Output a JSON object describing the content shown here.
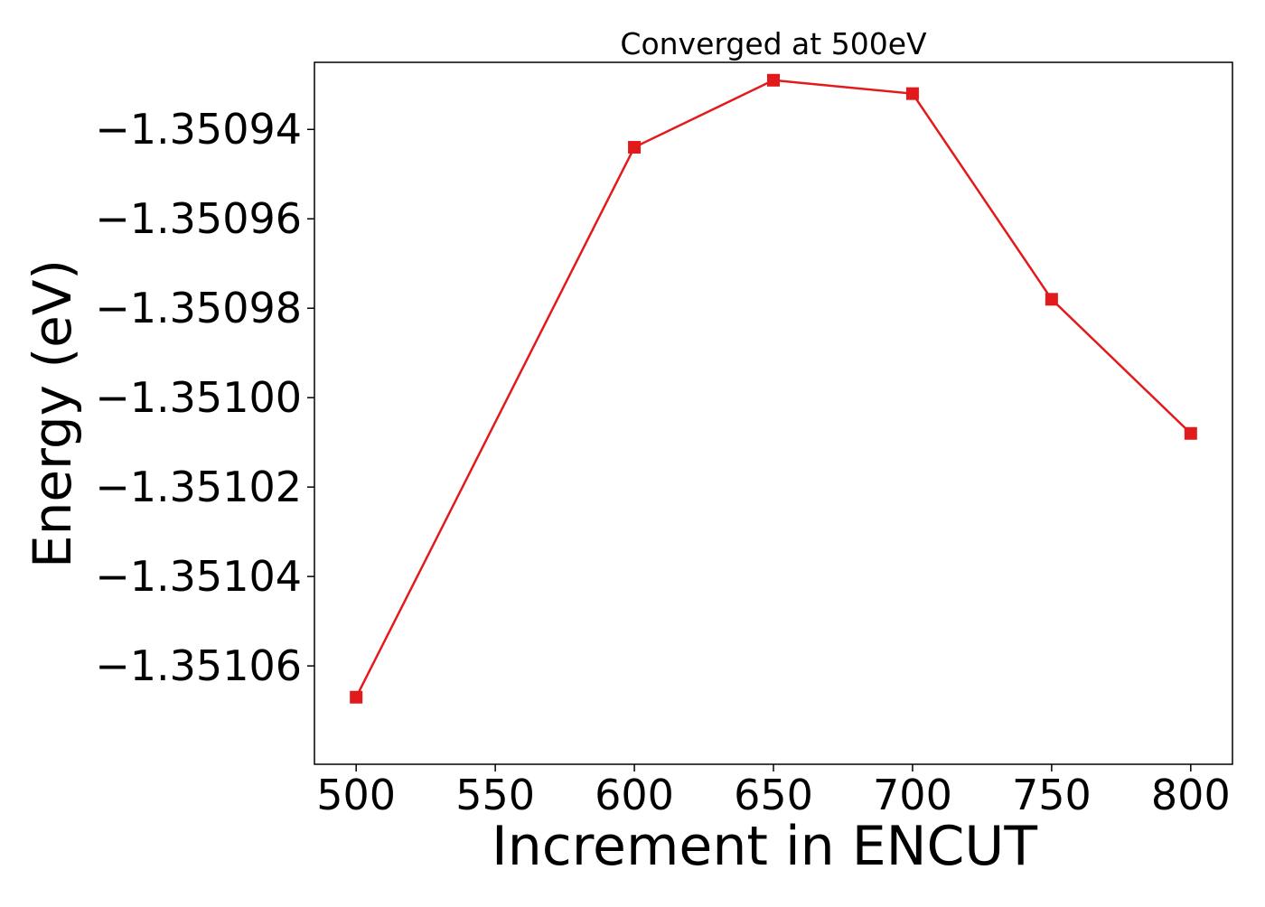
{
  "chart_data": {
    "type": "line",
    "title": "Converged at 500eV",
    "xlabel": "Increment in ENCUT",
    "ylabel": "Energy (eV)",
    "x": [
      500,
      600,
      650,
      700,
      750,
      800
    ],
    "series": [
      {
        "values": [
          -1.351067,
          -1.350944,
          -1.350929,
          -1.350932,
          -1.350978,
          -1.351008
        ],
        "color": "#e31a1c",
        "marker": "square"
      }
    ],
    "xticks": [
      500,
      550,
      600,
      650,
      700,
      750,
      800
    ],
    "xtick_labels": [
      "500",
      "550",
      "600",
      "650",
      "700",
      "750",
      "800"
    ],
    "yticks": [
      -1.35094,
      -1.35096,
      -1.35098,
      -1.351,
      -1.35102,
      -1.35104,
      -1.35106
    ],
    "ytick_labels": [
      "−1.35094",
      "−1.35096",
      "−1.35098",
      "−1.35100",
      "−1.35102",
      "−1.35104",
      "−1.35106"
    ],
    "xlim": [
      485,
      815
    ],
    "ylim": [
      -1.351082,
      -1.350925
    ],
    "grid": false,
    "legend": "none"
  }
}
